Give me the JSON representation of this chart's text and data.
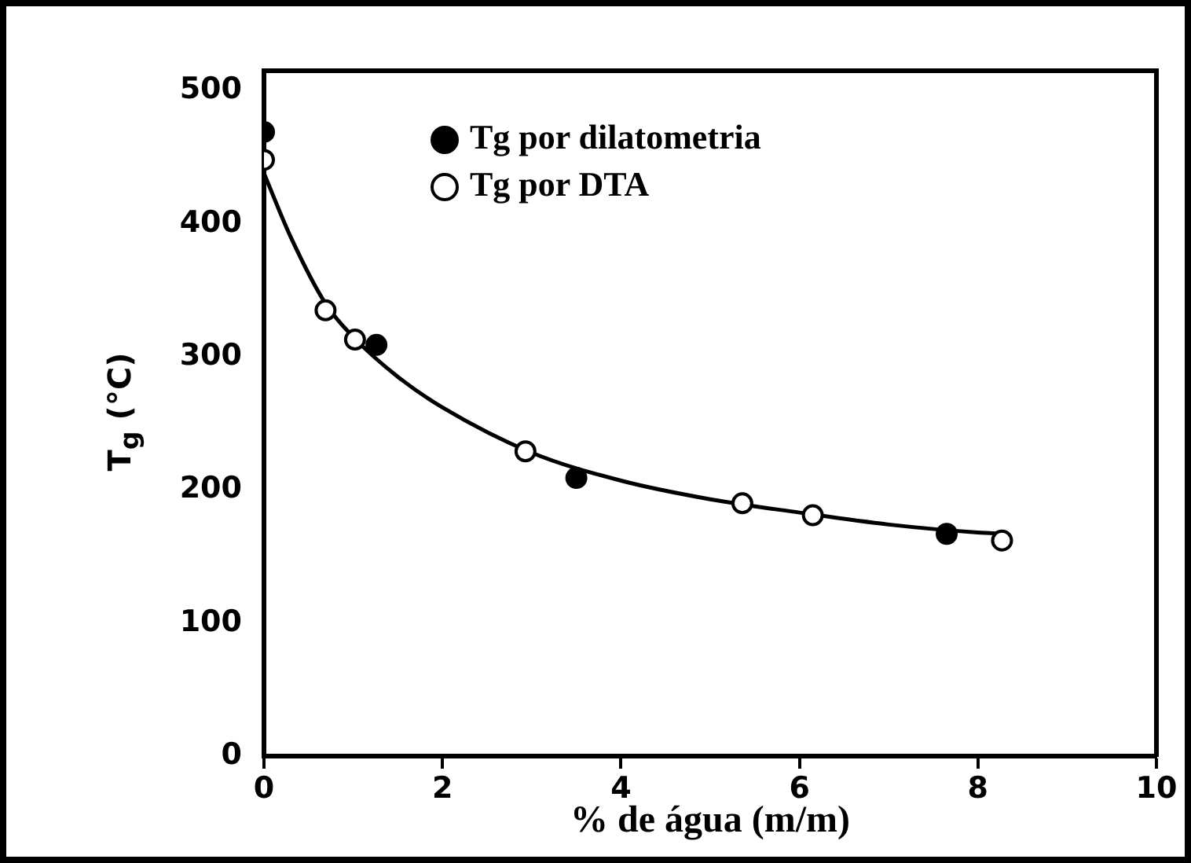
{
  "chart_data": {
    "type": "scatter",
    "xlabel": "% de água (m/m)",
    "ylabel": "T$_{g}$ (°C)",
    "xlim": [
      0,
      10
    ],
    "xticks": [
      0,
      2,
      4,
      6,
      8,
      10
    ],
    "ylim": [
      0,
      515
    ],
    "yticks": [
      0,
      100,
      200,
      300,
      400,
      500
    ],
    "grid": false,
    "legend": "top",
    "marker": "circle",
    "series": [
      {
        "name": "Tg por dilatometria",
        "color": "#000000",
        "x": [
          0,
          1.26,
          3.5,
          7.65
        ],
        "values": [
          469,
          309,
          209,
          167
        ]
      },
      {
        "name": "Tg por DTA",
        "color": "#ffffff",
        "x": [
          0,
          0.69,
          1.02,
          2.93,
          5.36,
          6.15,
          8.27
        ],
        "values": [
          448,
          335,
          313,
          229,
          190,
          181,
          162
        ]
      },
      {
        "type": "line",
        "color": "#000000",
        "marker": "none",
        "line_style": "solid",
        "x": [
          0,
          0.3,
          0.69,
          1,
          1.5,
          2,
          3,
          4,
          5,
          6,
          7,
          8,
          8.3
        ],
        "values": [
          438,
          390,
          340,
          315,
          285,
          262,
          228,
          207,
          193,
          183,
          174,
          168,
          167
        ]
      }
    ]
  }
}
